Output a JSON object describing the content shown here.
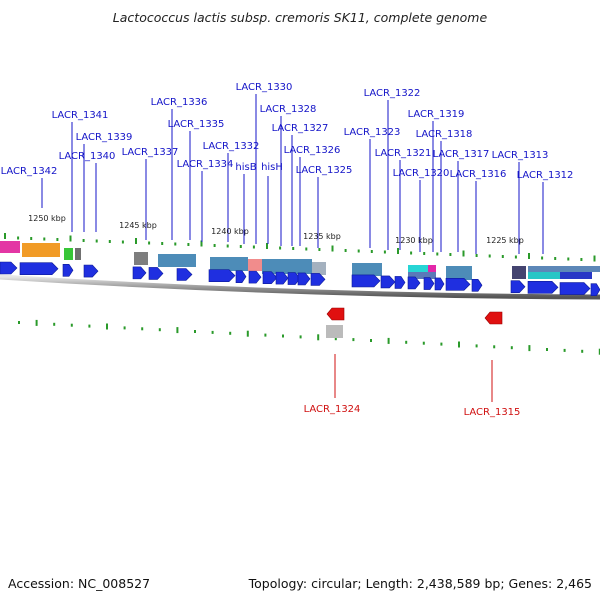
{
  "header": {
    "title": "Lactococcus lactis subsp. cremoris SK11, complete genome"
  },
  "footer": {
    "accession": "Accession: NC_008527",
    "summary": "Topology: circular; Length: 2,438,589 bp; Genes: 2,465"
  },
  "colors": {
    "forward_gene": "#1f2fe0",
    "reverse_gene": "#e01010",
    "label_forward": "#1414c8",
    "label_reverse": "#d01010"
  },
  "scale": {
    "ticks": [
      "1250 kbp",
      "1245 kbp",
      "1240 kbp",
      "1235 kbp",
      "1230 kbp",
      "1225 kbp"
    ]
  },
  "genes": {
    "forward": [
      "LACR_1342",
      "LACR_1341",
      "LACR_1339",
      "LACR_1340",
      "LACR_1337",
      "LACR_1336",
      "LACR_1335",
      "LACR_1334",
      "LACR_1332",
      "hisB",
      "LACR_1330",
      "hisH",
      "LACR_1328",
      "LACR_1327",
      "LACR_1326",
      "LACR_1325",
      "LACR_1323",
      "LACR_1322",
      "LACR_1321",
      "LACR_1320",
      "LACR_1319",
      "LACR_1318",
      "LACR_1317",
      "LACR_1316",
      "LACR_1313",
      "LACR_1312"
    ],
    "reverse": [
      "LACR_1324",
      "LACR_1315"
    ]
  }
}
